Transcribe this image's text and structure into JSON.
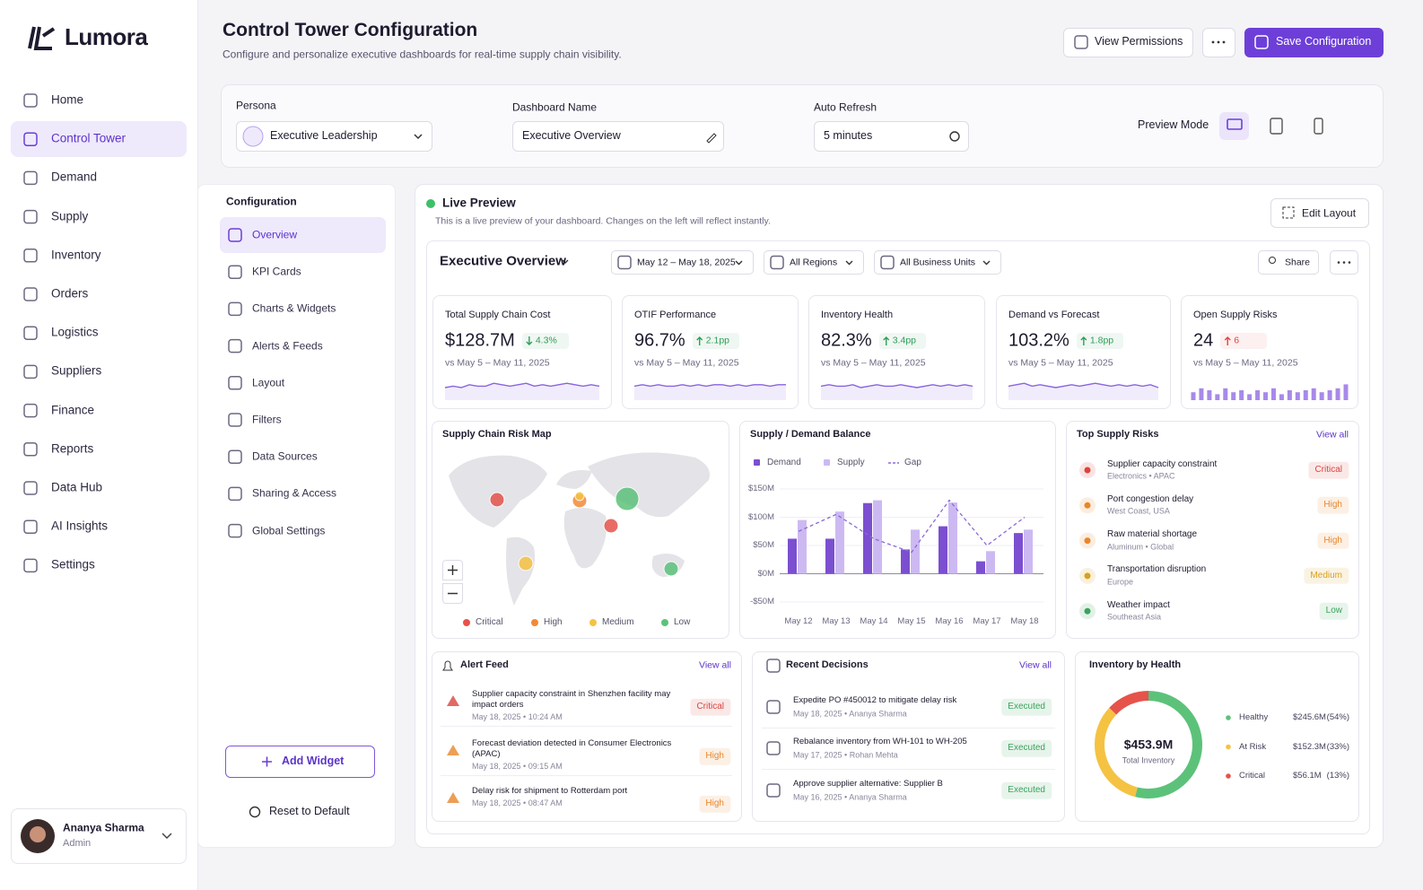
{
  "brand": "Lumora",
  "nav": [
    "Home",
    "Control Tower",
    "Demand",
    "Supply",
    "Inventory",
    "Orders",
    "Logistics",
    "Suppliers",
    "Finance",
    "Reports",
    "Data Hub",
    "AI Insights",
    "Settings"
  ],
  "user": {
    "name": "Ananya Sharma",
    "role": "Admin"
  },
  "header": {
    "title": "Control Tower Configuration",
    "subtitle": "Configure and personalize executive dashboards for real-time supply chain visibility.",
    "view_permissions": "View Permissions",
    "save": "Save Configuration"
  },
  "settings": {
    "persona_label": "Persona",
    "persona": "Executive Leadership",
    "dashboard_name_label": "Dashboard Name",
    "dashboard_name": "Executive Overview",
    "auto_refresh_label": "Auto Refresh",
    "auto_refresh": "5 minutes",
    "preview_mode_label": "Preview Mode"
  },
  "config": {
    "title": "Configuration",
    "items": [
      "Overview",
      "KPI Cards",
      "Charts & Widgets",
      "Alerts & Feeds",
      "Layout",
      "Filters",
      "Data Sources",
      "Sharing & Access",
      "Global Settings"
    ],
    "add_widget": "Add Widget",
    "reset": "Reset to Default"
  },
  "preview": {
    "title": "Live Preview",
    "subtitle": "This is a live preview of your dashboard. Changes on the left will reflect instantly.",
    "edit_layout": "Edit Layout",
    "dashboard_title": "Executive Overview",
    "filters": [
      "May 12 – May 18, 2025",
      "All Regions",
      "All Business Units"
    ],
    "share": "Share"
  },
  "kpis": [
    {
      "label": "Total Supply Chain Cost",
      "value": "$128.7M",
      "change": "4.3%",
      "trend": "down",
      "trend_color": "#2f9e57",
      "comparison": "vs May 5 – May 11, 2025",
      "sparkline": {
        "type": "line",
        "color": "#8a63e0",
        "values": [
          5,
          6,
          5,
          7,
          6,
          6,
          8,
          7,
          6,
          7,
          8,
          6,
          7,
          6,
          7,
          8,
          7,
          6,
          7,
          6
        ]
      }
    },
    {
      "label": "OTIF Performance",
      "value": "96.7%",
      "change": "2.1pp",
      "trend": "up",
      "trend_color": "#2f9e57",
      "comparison": "vs May 5 – May 11, 2025",
      "sparkline": {
        "type": "line",
        "color": "#8a63e0",
        "values": [
          6,
          7,
          6,
          7,
          6,
          6,
          7,
          6,
          7,
          6,
          7,
          7,
          6,
          7,
          6,
          7,
          7,
          6,
          7,
          7
        ]
      }
    },
    {
      "label": "Inventory Health",
      "value": "82.3%",
      "change": "3.4pp",
      "trend": "up",
      "trend_color": "#2f9e57",
      "comparison": "vs May 5 – May 11, 2025",
      "sparkline": {
        "type": "line",
        "color": "#8a63e0",
        "values": [
          6,
          7,
          6,
          6,
          7,
          5,
          6,
          7,
          6,
          6,
          7,
          6,
          5,
          6,
          7,
          6,
          7,
          6,
          7,
          6
        ]
      }
    },
    {
      "label": "Demand vs Forecast",
      "value": "103.2%",
      "change": "1.8pp",
      "trend": "up",
      "trend_color": "#2f9e57",
      "comparison": "vs May 5 – May 11, 2025",
      "sparkline": {
        "type": "line",
        "color": "#8a63e0",
        "values": [
          6,
          7,
          8,
          6,
          7,
          6,
          5,
          6,
          7,
          6,
          7,
          8,
          7,
          6,
          7,
          6,
          7,
          6,
          7,
          5
        ]
      }
    },
    {
      "label": "Open Supply Risks",
      "value": "24",
      "change": "6",
      "trend": "up",
      "trend_color": "#e0453d",
      "comparison": "vs May 5 – May 11, 2025",
      "sparkline": {
        "type": "bar",
        "color": "#a889ea",
        "values": [
          4,
          6,
          5,
          3,
          6,
          4,
          5,
          3,
          5,
          4,
          6,
          3,
          5,
          4,
          5,
          6,
          4,
          5,
          6,
          8
        ]
      }
    }
  ],
  "risk_map": {
    "title": "Supply Chain Risk Map",
    "legend": [
      {
        "name": "Critical",
        "color": "#e5534b"
      },
      {
        "name": "High",
        "color": "#f08a3a"
      },
      {
        "name": "Medium",
        "color": "#f5c242"
      },
      {
        "name": "Low",
        "color": "#5cc27a"
      }
    ]
  },
  "balance_chart": {
    "type": "bar",
    "title": "Supply / Demand Balance",
    "categories": [
      "May 12",
      "May 13",
      "May 14",
      "May 15",
      "May 16",
      "May 17",
      "May 18"
    ],
    "series": [
      {
        "name": "Demand",
        "color": "#7b4fd0",
        "values": [
          62,
          62,
          125,
          43,
          84,
          22,
          72
        ]
      },
      {
        "name": "Supply",
        "color": "#cdb9f2",
        "values": [
          95,
          110,
          130,
          78,
          126,
          40,
          78
        ]
      },
      {
        "name": "Gap",
        "color": "#8b6ad6",
        "type": "line",
        "values": [
          75,
          105,
          62,
          38,
          130,
          50,
          100
        ]
      }
    ],
    "ylim": [
      -50,
      150
    ],
    "yticks": [
      {
        "value": -50,
        "label": "-$50M"
      },
      {
        "value": 0,
        "label": "$0M"
      },
      {
        "value": 50,
        "label": "$50M"
      },
      {
        "value": 100,
        "label": "$100M"
      },
      {
        "value": 150,
        "label": "$150M"
      }
    ]
  },
  "top_risks": {
    "title": "Top Supply Risks",
    "view_all": "View all",
    "items": [
      {
        "title": "Supplier capacity constraint",
        "detail": "Electronics • APAC",
        "level": "Critical",
        "color": "#d9453d"
      },
      {
        "title": "Port congestion delay",
        "detail": "West Coast, USA",
        "level": "High",
        "color": "#e8862a"
      },
      {
        "title": "Raw material shortage",
        "detail": "Aluminum • Global",
        "level": "High",
        "color": "#e8862a"
      },
      {
        "title": "Transportation disruption",
        "detail": "Europe",
        "level": "Medium",
        "color": "#d9a01c"
      },
      {
        "title": "Weather impact",
        "detail": "Southeast Asia",
        "level": "Low",
        "color": "#3aa35c"
      }
    ]
  },
  "alerts": {
    "title": "Alert Feed",
    "view_all": "View all",
    "items": [
      {
        "text": "Supplier capacity constraint in Shenzhen facility may impact orders",
        "time": "May 18, 2025 • 10:24 AM",
        "level": "Critical",
        "color": "#d9453d"
      },
      {
        "text": "Forecast deviation detected in Consumer Electronics (APAC)",
        "time": "May 18, 2025 • 09:15 AM",
        "level": "High",
        "color": "#e8862a"
      },
      {
        "text": "Delay risk for shipment to Rotterdam port",
        "time": "May 18, 2025 • 08:47 AM",
        "level": "High",
        "color": "#e8862a"
      }
    ]
  },
  "decisions": {
    "title": "Recent Decisions",
    "view_all": "View all",
    "items": [
      {
        "text": "Expedite PO #450012 to mitigate delay risk",
        "time": "May 18, 2025 • Ananya Sharma",
        "status": "Executed",
        "color": "#3aa35c"
      },
      {
        "text": "Rebalance inventory from WH-101 to WH-205",
        "time": "May 17, 2025 • Rohan Mehta",
        "status": "Executed",
        "color": "#3aa35c"
      },
      {
        "text": "Approve supplier alternative: Supplier B",
        "time": "May 16, 2025 • Ananya Sharma",
        "status": "Executed",
        "color": "#3aa35c"
      }
    ]
  },
  "inventory": {
    "type": "pie",
    "title": "Inventory by Health",
    "center_value": "$453.9M",
    "center_label": "Total Inventory",
    "categories": [
      "Healthy",
      "At Risk",
      "Critical"
    ],
    "values": [
      54,
      33,
      13
    ],
    "value_labels": [
      "(54%)",
      "(33%)",
      "(13%)"
    ],
    "amounts": [
      "$245.6M",
      "$152.3M",
      "$56.1M"
    ],
    "colors": [
      "#5cc27a",
      "#f5c242",
      "#e5534b"
    ]
  }
}
